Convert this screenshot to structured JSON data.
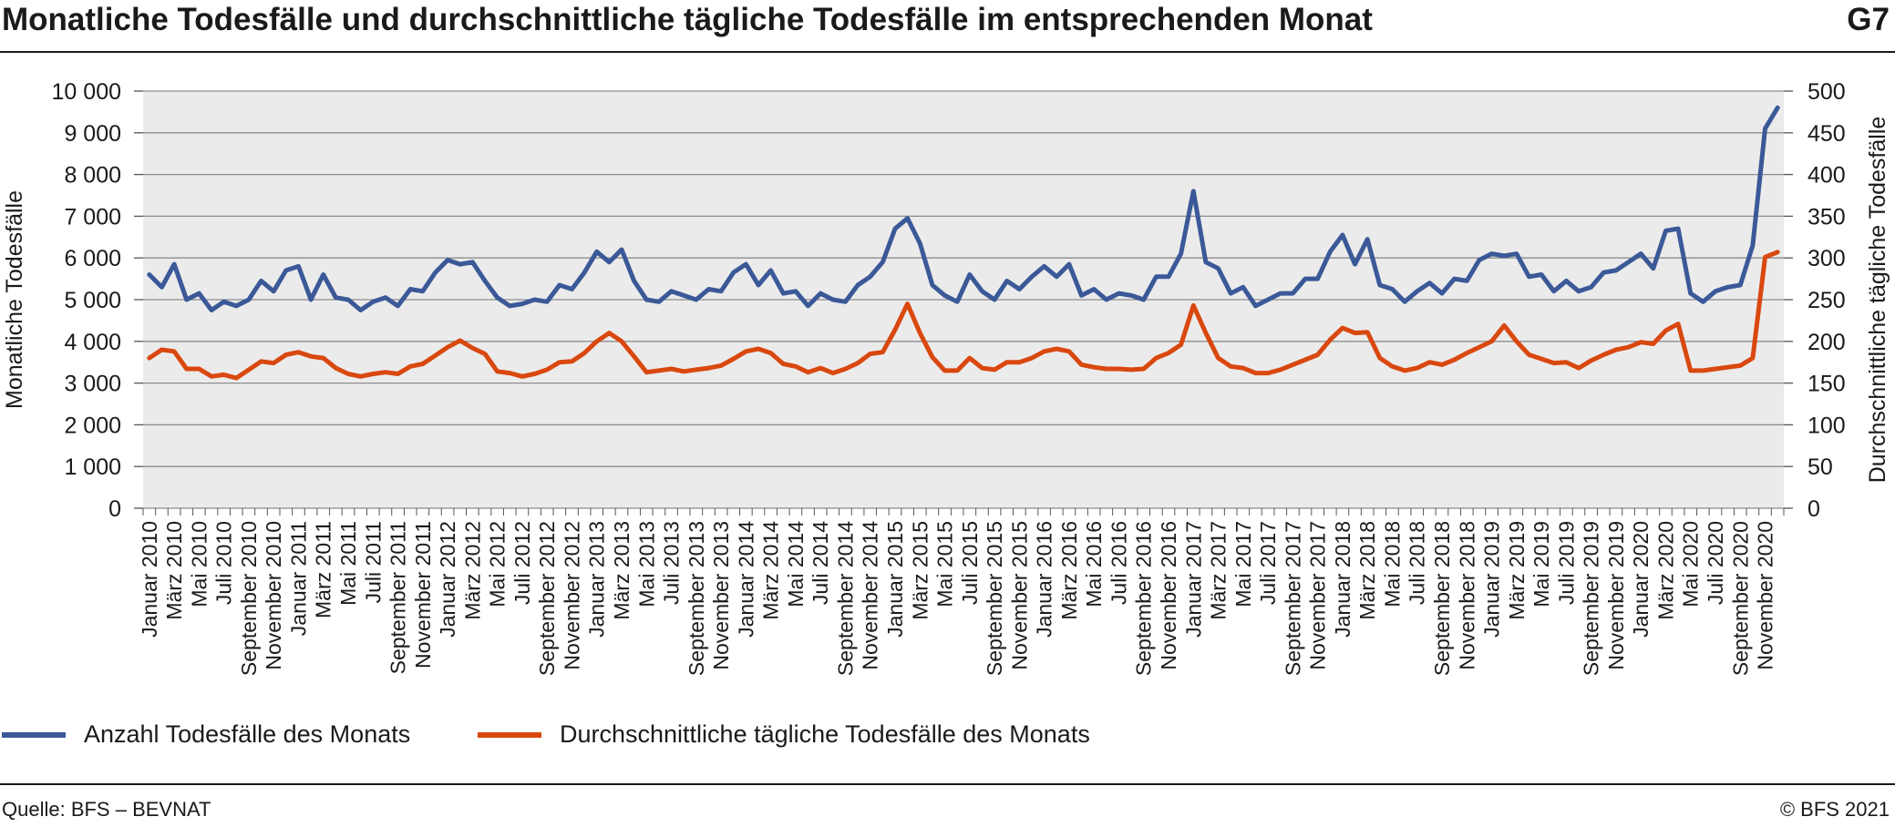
{
  "header": {
    "title": "Monatliche Todesfälle und durchschnittliche tägliche Todesfälle im entsprechenden Monat",
    "tag": "G7"
  },
  "footer": {
    "source": "Quelle: BFS – BEVNAT",
    "copyright": "© BFS 2021"
  },
  "chart_data": {
    "type": "line",
    "xlabel": "",
    "ylabel": "Monatliche Todesfälle",
    "ylabel_right": "Durchschnittliche tägliche Todesfälle",
    "ylim": [
      0,
      10000
    ],
    "ylim_right": [
      0,
      500
    ],
    "yticks": [
      "0",
      "1 000",
      "2 000",
      "3 000",
      "4 000",
      "5 000",
      "6 000",
      "7 000",
      "8 000",
      "9 000",
      "10 000"
    ],
    "yticks_right": [
      "0",
      "50",
      "100",
      "150",
      "200",
      "250",
      "300",
      "350",
      "400",
      "450",
      "500"
    ],
    "grid": true,
    "legend_position": "bottom-left",
    "x_tick_labels": [
      "Januar 2010",
      "März 2010",
      "Mai 2010",
      "Juli 2010",
      "September 2010",
      "November 2010",
      "Januar 2011",
      "März 2011",
      "Mai 2011",
      "Juli 2011",
      "September 2011",
      "November 2011",
      "Januar 2012",
      "März 2012",
      "Mai 2012",
      "Juli 2012",
      "September 2012",
      "November 2012",
      "Januar 2013",
      "März 2013",
      "Mai 2013",
      "Juli 2013",
      "September 2013",
      "November 2013",
      "Januar 2014",
      "März 2014",
      "Mai 2014",
      "Juli 2014",
      "September 2014",
      "November 2014",
      "Januar 2015",
      "März 2015",
      "Mai 2015",
      "Juli 2015",
      "September 2015",
      "November 2015",
      "Januar 2016",
      "März 2016",
      "Mai 2016",
      "Juli 2016",
      "September 2016",
      "November 2016",
      "Januar 2017",
      "März 2017",
      "Mai 2017",
      "Juli 2017",
      "September 2017",
      "November 2017",
      "Januar 2018",
      "März 2018",
      "Mai 2018",
      "Juli 2018",
      "September 2018",
      "November 2018",
      "Januar 2019",
      "März 2019",
      "Mai 2019",
      "Juli 2019",
      "September 2019",
      "November 2019",
      "Januar 2020",
      "März 2020",
      "Mai 2020",
      "Juli 2020",
      "September 2020",
      "November 2020"
    ],
    "series": [
      {
        "name": "Anzahl Todesfälle des Monats",
        "axis": "left",
        "color": "#3b5998",
        "values": [
          5600,
          5300,
          5850,
          5000,
          5150,
          4750,
          4950,
          4850,
          5000,
          5450,
          5200,
          5700,
          5800,
          5000,
          5600,
          5050,
          5000,
          4750,
          4950,
          5050,
          4850,
          5250,
          5200,
          5650,
          5950,
          5850,
          5900,
          5450,
          5050,
          4850,
          4900,
          5000,
          4950,
          5350,
          5250,
          5650,
          6150,
          5900,
          6200,
          5450,
          5000,
          4950,
          5200,
          5100,
          5000,
          5250,
          5200,
          5650,
          5850,
          5350,
          5700,
          5150,
          5200,
          4850,
          5150,
          5000,
          4950,
          5350,
          5550,
          5900,
          6700,
          6950,
          6350,
          5350,
          5100,
          4950,
          5600,
          5200,
          5000,
          5450,
          5250,
          5550,
          5800,
          5550,
          5850,
          5100,
          5250,
          5000,
          5150,
          5100,
          5000,
          5550,
          5550,
          6100,
          7600,
          5900,
          5750,
          5150,
          5300,
          4850,
          5000,
          5150,
          5150,
          5500,
          5500,
          6150,
          6550,
          5850,
          6450,
          5350,
          5250,
          4950,
          5200,
          5400,
          5150,
          5500,
          5450,
          5950,
          6100,
          6050,
          6100,
          5550,
          5600,
          5200,
          5450,
          5200,
          5300,
          5650,
          5700,
          5900,
          6100,
          5750,
          6650,
          6700,
          5150,
          4950,
          5200,
          5300,
          5350,
          6300,
          9100,
          9600
        ]
      },
      {
        "name": "Durchschnittliche tägliche Todesfälle des Monats",
        "axis": "right",
        "color": "#d9480f",
        "values": [
          180,
          190,
          188,
          167,
          167,
          158,
          160,
          156,
          166,
          176,
          174,
          184,
          187,
          182,
          180,
          168,
          161,
          158,
          161,
          163,
          161,
          170,
          173,
          183,
          193,
          201,
          192,
          185,
          164,
          162,
          158,
          161,
          166,
          175,
          176,
          186,
          200,
          210,
          200,
          182,
          163,
          165,
          167,
          164,
          166,
          168,
          171,
          179,
          188,
          191,
          186,
          173,
          170,
          163,
          168,
          162,
          167,
          174,
          185,
          187,
          214,
          245,
          210,
          181,
          165,
          165,
          180,
          168,
          166,
          175,
          175,
          180,
          188,
          191,
          188,
          172,
          169,
          167,
          167,
          166,
          167,
          180,
          186,
          196,
          243,
          210,
          180,
          170,
          168,
          162,
          162,
          166,
          172,
          178,
          184,
          202,
          216,
          210,
          211,
          180,
          170,
          165,
          168,
          175,
          172,
          178,
          186,
          193,
          200,
          219,
          200,
          184,
          179,
          174,
          175,
          168,
          177,
          184,
          190,
          193,
          199,
          197,
          213,
          221,
          165,
          165,
          167,
          169,
          171,
          180,
          301,
          307
        ]
      }
    ]
  }
}
